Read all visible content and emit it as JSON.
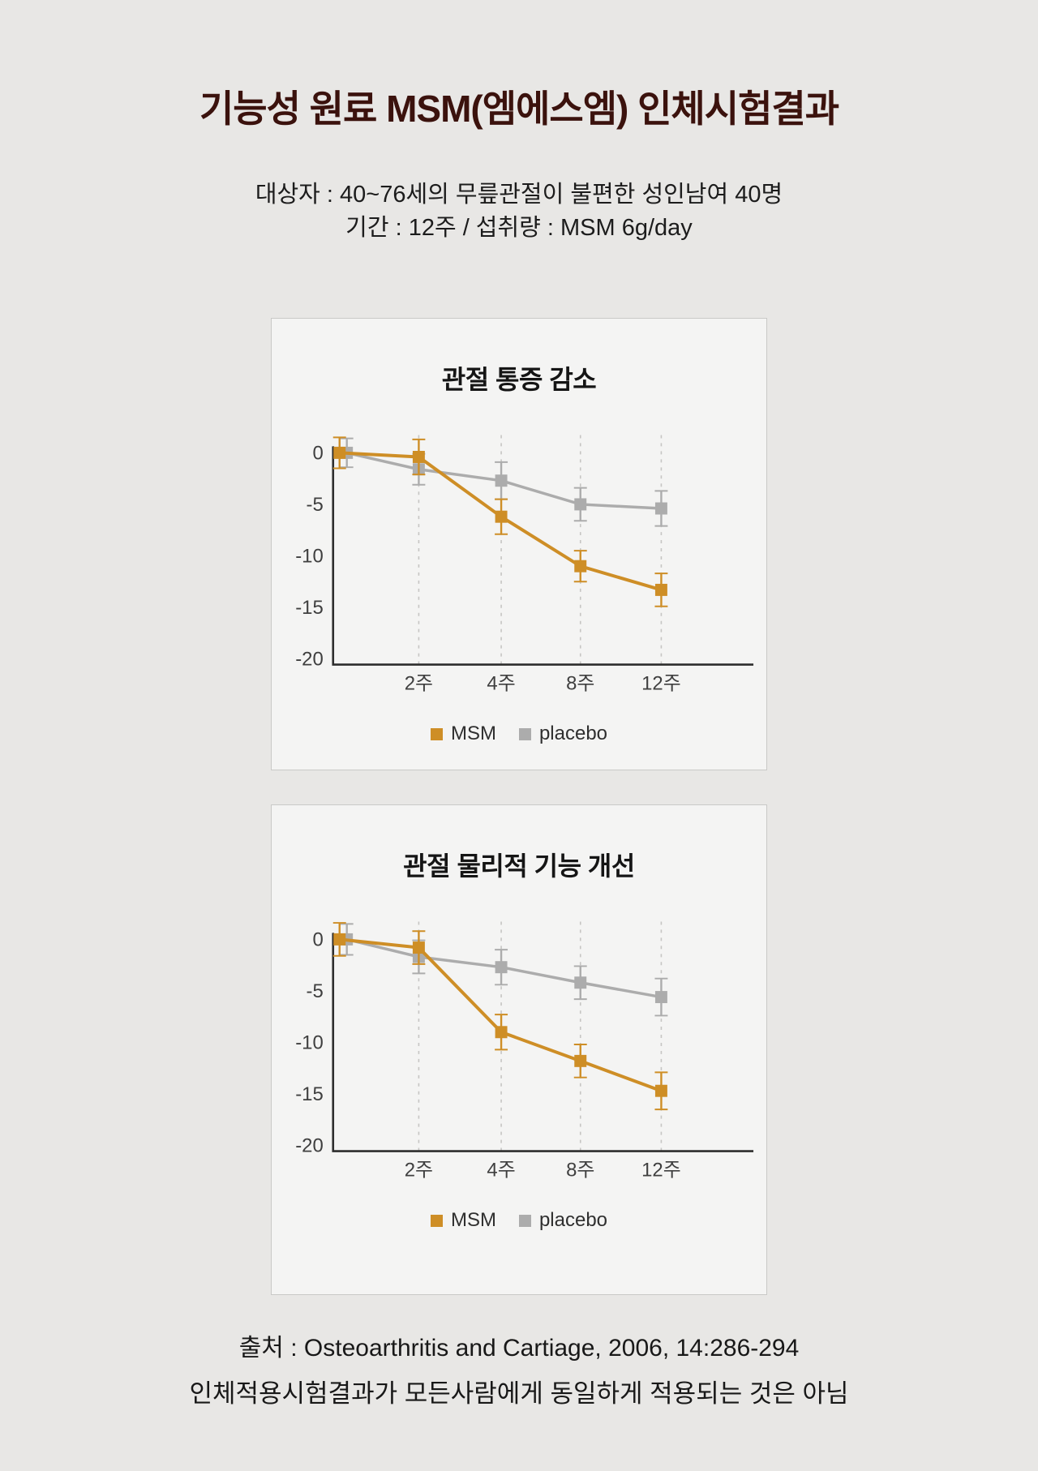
{
  "page": {
    "title": "기능성 원료 MSM(엠에스엠) 인체시험결과",
    "subtitle_line1": "대상자 : 40~76세의 무릎관절이 불편한 성인남여 40명",
    "subtitle_line2": "기간 : 12주 / 섭취량 : MSM 6g/day",
    "footer_line1": "출처 : Osteoarthritis and Cartiage, 2006, 14:286-294",
    "footer_line2": "인체적용시험결과가 모든사람에게 동일하게 적용되는 것은 아님"
  },
  "colors": {
    "title_maroon": "#3b120d",
    "page_bg": "#e8e7e5",
    "card_bg": "#f4f4f3",
    "card_border": "#c9c9c7",
    "msm_orange": "#ce8e26",
    "placebo_gray": "#acacac",
    "axis": "#2d2d2d",
    "gridline": "#c6c5c3"
  },
  "chart_data": [
    {
      "type": "line",
      "title": "관절 통증 감소",
      "categories": [
        "",
        "2주",
        "4주",
        "8주",
        "12주"
      ],
      "x_weeks": [
        0,
        2,
        4,
        8,
        12
      ],
      "yticks": [
        0,
        -5,
        -10,
        -15,
        -20
      ],
      "ylim": [
        -20,
        2
      ],
      "grid": "dashed-vertical",
      "legend_position": "bottom",
      "error_bars": true,
      "series": [
        {
          "name": "MSM",
          "color": "#ce8e26",
          "values": [
            0,
            -0.4,
            -6.2,
            -11.0,
            -13.3
          ],
          "error": [
            1.5,
            1.7,
            1.7,
            1.5,
            1.6
          ]
        },
        {
          "name": "placebo",
          "color": "#acacac",
          "values": [
            0,
            -1.6,
            -2.7,
            -5.0,
            -5.4
          ],
          "error": [
            1.4,
            1.5,
            1.8,
            1.6,
            1.7
          ]
        }
      ]
    },
    {
      "type": "line",
      "title": "관절 물리적 기능 개선",
      "categories": [
        "",
        "2주",
        "4주",
        "8주",
        "12주"
      ],
      "x_weeks": [
        0,
        2,
        4,
        8,
        12
      ],
      "yticks": [
        0,
        -5,
        -10,
        -15,
        -20
      ],
      "ylim": [
        -20,
        2
      ],
      "grid": "dashed-vertical",
      "legend_position": "bottom",
      "error_bars": true,
      "series": [
        {
          "name": "MSM",
          "color": "#ce8e26",
          "values": [
            0,
            -0.8,
            -9.0,
            -11.8,
            -14.7
          ],
          "error": [
            1.6,
            1.6,
            1.7,
            1.6,
            1.8
          ]
        },
        {
          "name": "placebo",
          "color": "#acacac",
          "values": [
            0,
            -1.7,
            -2.7,
            -4.2,
            -5.6
          ],
          "error": [
            1.5,
            1.6,
            1.7,
            1.6,
            1.8
          ]
        }
      ]
    }
  ]
}
